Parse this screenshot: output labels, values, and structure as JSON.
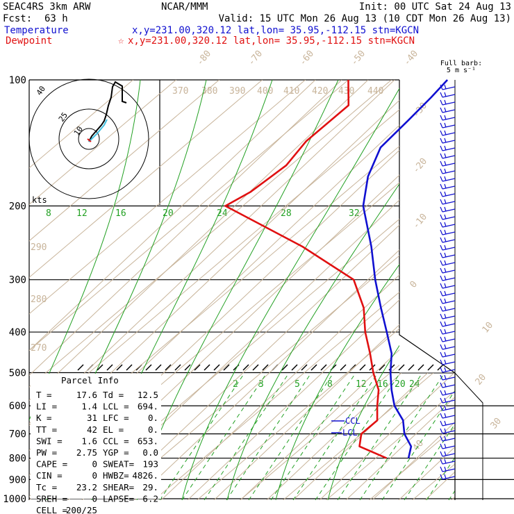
{
  "header": {
    "model": "SEAC4RS  3km ARW",
    "org": "NCAR/MMM",
    "init": "Init: 00 UTC Sat 24 Aug 13",
    "fcst_label": "Fcst:",
    "fcst_value": "63 h",
    "valid": "Valid: 15 UTC Mon 26 Aug 13 (10 CDT Mon 26 Aug 13)",
    "temperature_label": "Temperature",
    "temperature_loc": "x,y=231.00,320.12   lat,lon= 35.95,-112.15   stn=KGCN",
    "dewpoint_label": "Dewpoint",
    "dewpoint_star": "☆",
    "dewpoint_loc": "x,y=231.00,320.12   lat,lon= 35.95,-112.15   stn=KGCN"
  },
  "colors": {
    "temperature": "#1010d0",
    "dewpoint": "#e01010",
    "isotherm": "#c8b49a",
    "mixing_ratio": "#22a022",
    "hodograph_trace": "#40c0e0"
  },
  "barb_label": {
    "line1": "Full barb:",
    "line2": "5 m s⁻¹"
  },
  "hodograph": {
    "units": "kts",
    "ring_labels": [
      "10",
      "25",
      "40"
    ]
  },
  "parcel_info": {
    "title": "Parcel Info",
    "rows": [
      [
        "T  =",
        "17.6",
        "Td =",
        "12.5"
      ],
      [
        "LI =",
        "1.4",
        "LCL =",
        "694."
      ],
      [
        "K  =",
        "31",
        "LFC =",
        "0."
      ],
      [
        "TT =",
        "42",
        "EL  =",
        "0."
      ],
      [
        "SWI =",
        "1.6",
        "CCL =",
        "653."
      ],
      [
        "PW =",
        "2.75",
        "YGP =",
        "0.0"
      ],
      [
        "CAPE =",
        "0",
        "SWEAT=",
        "193"
      ],
      [
        "CIN =",
        "0",
        "HWBZ=",
        "4826."
      ],
      [
        "Tc =",
        "23.2",
        "SHEAR=",
        "29."
      ],
      [
        "SREH =",
        "0",
        "LAPSE=",
        "6.2"
      ],
      [
        "CELL =",
        "200/25",
        "",
        ""
      ]
    ]
  },
  "level_markers": {
    "ccl": "CCL",
    "lcl": "LCL"
  },
  "chart_data": {
    "type": "line",
    "title": "",
    "xlabel": "",
    "ylabel": "",
    "y_axis": "pressure (hPa), log scale",
    "pressure_ticks": [
      100,
      200,
      300,
      400,
      500,
      600,
      700,
      800,
      900,
      1000
    ],
    "isotherm_labels": [
      "-80",
      "-70",
      "-60",
      "-50",
      "-40",
      "-30",
      "-20",
      "-10",
      "0",
      "10",
      "20",
      "30",
      "40"
    ],
    "theta_labels": [
      "370",
      "380",
      "390",
      "400",
      "410",
      "420",
      "430",
      "440",
      "290",
      "280",
      "270"
    ],
    "mixing_ratio_labels_upper": [
      "8",
      "12",
      "16",
      "20",
      "24",
      "28",
      "32"
    ],
    "mixing_ratio_labels_lower": [
      "2",
      "3",
      "5",
      "8",
      "12",
      "16",
      "20",
      "24"
    ],
    "series": [
      {
        "name": "Temperature",
        "pressure": [
          100,
          110,
          125,
          145,
          170,
          200,
          250,
          300,
          350,
          400,
          450,
          500,
          550,
          600,
          650,
          700,
          750,
          800
        ],
        "temperature_c": [
          -77,
          -76,
          -75,
          -74,
          -69,
          -62,
          -49,
          -39,
          -30,
          -22,
          -15,
          -10,
          -5,
          0,
          6,
          10,
          15,
          17.6
        ]
      },
      {
        "name": "Dewpoint",
        "pressure": [
          100,
          115,
          140,
          160,
          185,
          200,
          250,
          300,
          350,
          400,
          450,
          500,
          550,
          600,
          650,
          700,
          750,
          800
        ],
        "temperature_c": [
          -100,
          -93,
          -93,
          -91,
          -92,
          -94,
          -65,
          -44,
          -34,
          -27,
          -20,
          -14,
          -8,
          -4,
          0,
          0,
          3,
          12.5
        ]
      }
    ]
  }
}
